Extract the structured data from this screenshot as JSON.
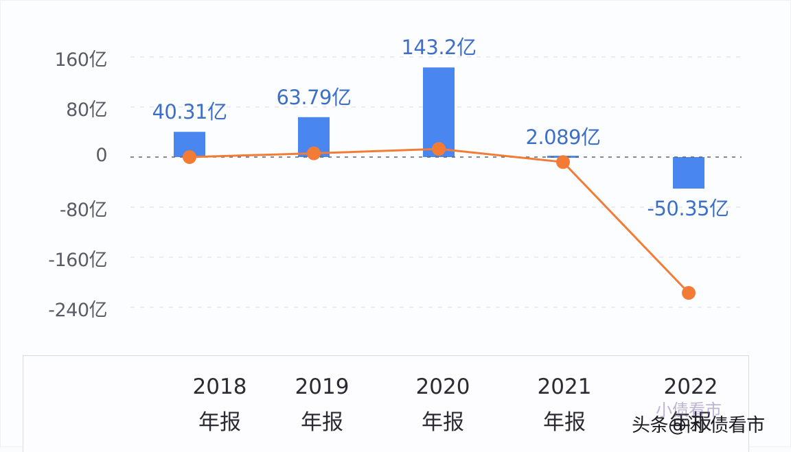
{
  "chart_data": {
    "type": "bar+line",
    "title": "",
    "categories": [
      "2018年报",
      "2019年报",
      "2020年报",
      "2021年报",
      "2022年报"
    ],
    "category_lines": [
      {
        "year": "2018",
        "suffix": "年报"
      },
      {
        "year": "2019",
        "suffix": "年报"
      },
      {
        "year": "2020",
        "suffix": "年报"
      },
      {
        "year": "2021",
        "suffix": "年报"
      },
      {
        "year": "2022",
        "suffix": "年报"
      }
    ],
    "series": [
      {
        "name": "bar-series",
        "type": "bar",
        "color": "#4a86f0",
        "values": [
          40.31,
          63.79,
          143.2,
          2.089,
          -50.35
        ],
        "labels": [
          "40.31亿",
          "63.79亿",
          "143.2亿",
          "2.089亿",
          "-50.35亿"
        ]
      },
      {
        "name": "line-series",
        "type": "line",
        "color": "#f27b36",
        "values": [
          0,
          6,
          13,
          -8,
          -217
        ]
      }
    ],
    "yaxis": {
      "ticks": [
        160,
        80,
        0,
        -80,
        -160,
        -240
      ],
      "tick_labels": [
        "160亿",
        "80亿",
        "0",
        "-80亿",
        "-160亿",
        "-240亿"
      ],
      "unit": "亿"
    },
    "ylim": [
      -260,
      180
    ],
    "grid": true,
    "xlabel": "",
    "ylabel": "",
    "legend": null
  },
  "watermark": {
    "back_text": "小债看市",
    "front_text": "头条@闲 债看市"
  }
}
